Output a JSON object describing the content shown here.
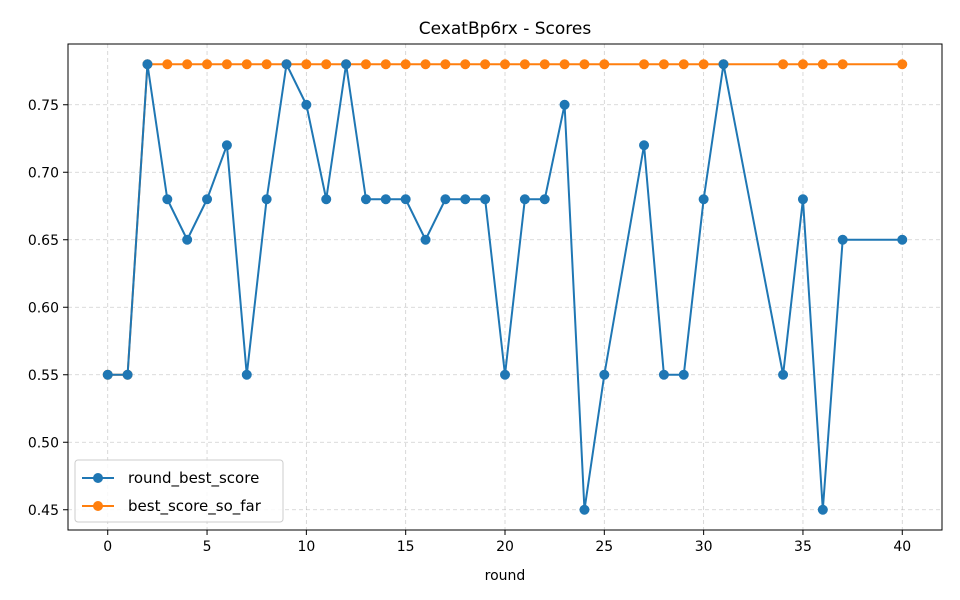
{
  "chart_data": {
    "type": "line",
    "title": "CexatBp6rx - Scores",
    "xlabel": "round",
    "ylabel": "",
    "xlim": [
      -2,
      42
    ],
    "ylim": [
      0.435,
      0.795
    ],
    "xticks": [
      0,
      5,
      10,
      15,
      20,
      25,
      30,
      35,
      40
    ],
    "yticks": [
      0.45,
      0.5,
      0.55,
      0.6,
      0.65,
      0.7,
      0.75
    ],
    "ytick_labels": [
      "0.45",
      "0.50",
      "0.55",
      "0.60",
      "0.65",
      "0.70",
      "0.75"
    ],
    "grid": true,
    "legend_position": "lower-left",
    "series": [
      {
        "name": "round_best_score",
        "color": "#1f77b4",
        "x": [
          0,
          1,
          2,
          3,
          4,
          5,
          6,
          7,
          8,
          9,
          10,
          11,
          12,
          13,
          14,
          15,
          16,
          17,
          18,
          19,
          20,
          21,
          22,
          23,
          24,
          25,
          27,
          28,
          29,
          30,
          31,
          34,
          35,
          36,
          37,
          40
        ],
        "y": [
          0.55,
          0.55,
          0.78,
          0.68,
          0.65,
          0.68,
          0.72,
          0.55,
          0.68,
          0.78,
          0.75,
          0.68,
          0.78,
          0.68,
          0.68,
          0.68,
          0.65,
          0.68,
          0.68,
          0.68,
          0.55,
          0.68,
          0.68,
          0.75,
          0.45,
          0.55,
          0.72,
          0.55,
          0.55,
          0.68,
          0.78,
          0.55,
          0.68,
          0.45,
          0.65,
          0.65
        ]
      },
      {
        "name": "best_score_so_far",
        "color": "#ff7f0e",
        "x": [
          0,
          1,
          2,
          3,
          4,
          5,
          6,
          7,
          8,
          9,
          10,
          11,
          12,
          13,
          14,
          15,
          16,
          17,
          18,
          19,
          20,
          21,
          22,
          23,
          24,
          25,
          27,
          28,
          29,
          30,
          31,
          34,
          35,
          36,
          37,
          40
        ],
        "y": [
          0.55,
          0.55,
          0.78,
          0.78,
          0.78,
          0.78,
          0.78,
          0.78,
          0.78,
          0.78,
          0.78,
          0.78,
          0.78,
          0.78,
          0.78,
          0.78,
          0.78,
          0.78,
          0.78,
          0.78,
          0.78,
          0.78,
          0.78,
          0.78,
          0.78,
          0.78,
          0.78,
          0.78,
          0.78,
          0.78,
          0.78,
          0.78,
          0.78,
          0.78,
          0.78,
          0.78
        ]
      }
    ]
  }
}
